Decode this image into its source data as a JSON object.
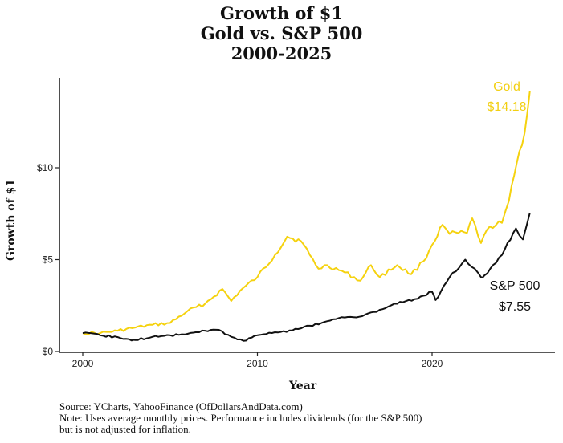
{
  "chart_data": {
    "type": "line",
    "title": [
      "Growth of $1",
      "Gold vs. S&P 500",
      "2000-2025"
    ],
    "xlabel": "Year",
    "ylabel": "Growth of $1",
    "xlim": [
      1998.7,
      2026.9
    ],
    "ylim": [
      0,
      14.8
    ],
    "x_ticks": [
      2000,
      2010,
      2020
    ],
    "x_tick_labels": [
      "2000",
      "2010",
      "2020"
    ],
    "y_ticks": [
      0,
      5,
      10
    ],
    "y_tick_labels": [
      "$0",
      "$5",
      "$10"
    ],
    "grid": false,
    "legend": "none (direct labels at line ends)",
    "series": [
      {
        "name": "Gold",
        "color": "#f5d20f",
        "end_label": "Gold",
        "end_value_label": "$14.18",
        "x": [
          2000,
          2001,
          2002,
          2003,
          2004,
          2005,
          2006,
          2007,
          2008,
          2008.5,
          2009,
          2010,
          2011,
          2011.7,
          2012.5,
          2013,
          2013.5,
          2014,
          2015,
          2015.9,
          2016.5,
          2017,
          2018,
          2018.8,
          2019.5,
          2020,
          2020.6,
          2021,
          2022,
          2022.3,
          2022.8,
          2023.3,
          2024,
          2024.4,
          2025,
          2025.3,
          2025.6
        ],
        "values": [
          1.0,
          1.0,
          1.13,
          1.3,
          1.45,
          1.55,
          2.2,
          2.6,
          3.4,
          2.75,
          3.3,
          4.05,
          5.25,
          6.25,
          6.0,
          5.25,
          4.5,
          4.7,
          4.3,
          3.85,
          4.7,
          4.05,
          4.7,
          4.2,
          4.9,
          5.8,
          6.9,
          6.4,
          6.45,
          7.25,
          5.9,
          6.8,
          7.0,
          8.2,
          10.9,
          11.9,
          14.18
        ]
      },
      {
        "name": "S&P 500",
        "color": "#111111",
        "end_label": "S&P 500",
        "end_value_label": "$7.55",
        "x": [
          2000,
          2001,
          2002,
          2002.8,
          2003,
          2004,
          2005,
          2006,
          2007,
          2007.8,
          2008.5,
          2009.2,
          2010,
          2011,
          2012,
          2013,
          2014,
          2015,
          2016,
          2017,
          2018,
          2019,
          2020,
          2020.2,
          2021,
          2021.9,
          2022.8,
          2023,
          2024,
          2024.8,
          2025.2,
          2025.6
        ],
        "values": [
          1.0,
          0.88,
          0.78,
          0.6,
          0.62,
          0.8,
          0.88,
          0.96,
          1.13,
          1.18,
          0.8,
          0.58,
          0.88,
          1.05,
          1.15,
          1.4,
          1.65,
          1.85,
          1.92,
          2.27,
          2.6,
          2.85,
          3.25,
          2.8,
          4.05,
          5.0,
          4.05,
          4.15,
          5.25,
          6.7,
          6.1,
          7.55
        ]
      }
    ]
  },
  "footnote": {
    "source": "Source:  YCharts, YahooFinance (OfDollarsAndData.com)",
    "note_line1": "Note: Uses average monthly prices. Performance includes dividends (for the S&P 500)",
    "note_line2": "but is not adjusted for inflation."
  }
}
